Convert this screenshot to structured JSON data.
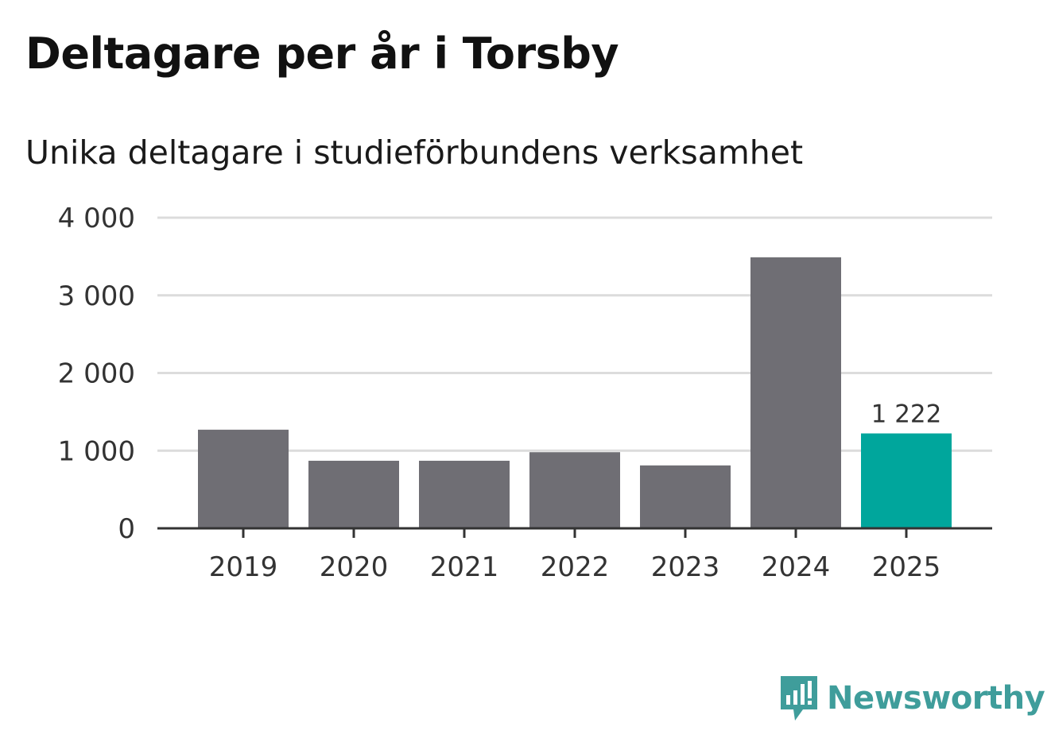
{
  "title": "Deltagare per år i Torsby",
  "subtitle": "Unika deltagare i studieförbundens verksamhet",
  "colors": {
    "bar": "#6f6e74",
    "highlight": "#00a69c",
    "grid": "#dcdcdc",
    "axis": "#333333",
    "brand": "#3f9d9b"
  },
  "brand": {
    "name": "Newsworthy",
    "icon": "newsworthy-logo-icon"
  },
  "chart_data": {
    "type": "bar",
    "title": "Deltagare per år i Torsby",
    "subtitle": "Unika deltagare i studieförbundens verksamhet",
    "xlabel": "",
    "ylabel": "",
    "categories": [
      "2019",
      "2020",
      "2021",
      "2022",
      "2023",
      "2024",
      "2025"
    ],
    "values": [
      1270,
      870,
      870,
      980,
      810,
      3490,
      1222
    ],
    "ylim": [
      0,
      4000
    ],
    "yticks": [
      0,
      1000,
      2000,
      3000,
      4000
    ],
    "ytick_labels": [
      "0",
      "1 000",
      "2 000",
      "3 000",
      "4 000"
    ],
    "grid": true,
    "highlight_index": 6,
    "data_labels": [
      {
        "index": 6,
        "text": "1 222"
      }
    ]
  }
}
